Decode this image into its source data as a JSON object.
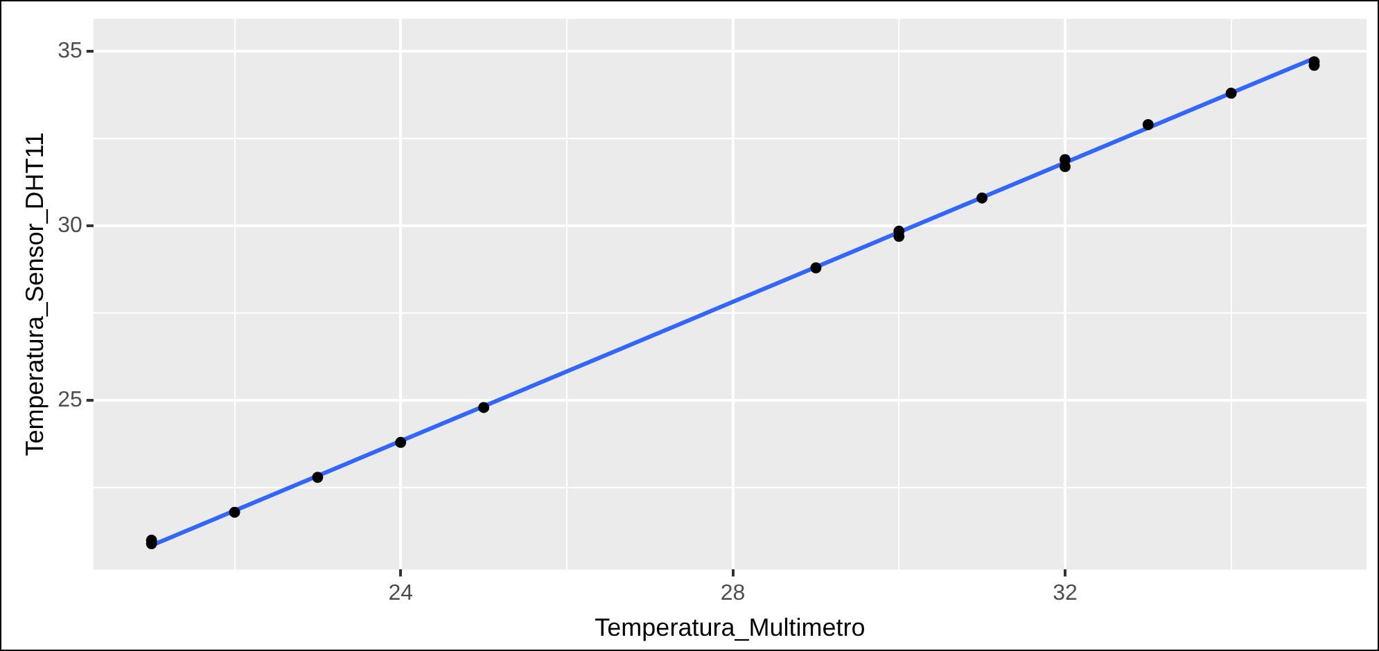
{
  "chart_data": {
    "type": "scatter",
    "xlabel": "Temperatura_Multimetro",
    "ylabel": "Temperatura_Sensor_DHT11",
    "series": [
      {
        "color": "#000000",
        "marker": "circle",
        "x": [
          21,
          21,
          22,
          23,
          24,
          25,
          29,
          30,
          30,
          31,
          32,
          32,
          33,
          34,
          35,
          35
        ],
        "values": [
          20.9,
          21.0,
          21.8,
          22.8,
          23.8,
          24.8,
          28.8,
          29.7,
          29.85,
          30.8,
          31.7,
          31.9,
          32.9,
          33.8,
          34.6,
          34.7
        ]
      },
      {
        "type": "line",
        "color": "#3366ff",
        "marker": "none",
        "x": [
          21,
          35
        ],
        "values": [
          20.85,
          34.8
        ]
      }
    ],
    "xlim": [
      20.3,
      35.63
    ],
    "ylim": [
      20.16,
      35.93
    ],
    "xticks": [
      {
        "value": 22,
        "label": null
      },
      24,
      {
        "value": 26,
        "label": null
      },
      28,
      {
        "value": 30,
        "label": null
      },
      32,
      {
        "value": 34,
        "label": null
      }
    ],
    "yticks": [
      {
        "value": 22.5,
        "label": null
      },
      25,
      {
        "value": 27.5,
        "label": null
      },
      30,
      {
        "value": 32.5,
        "label": null
      },
      35
    ],
    "grid": true,
    "legend": false
  }
}
